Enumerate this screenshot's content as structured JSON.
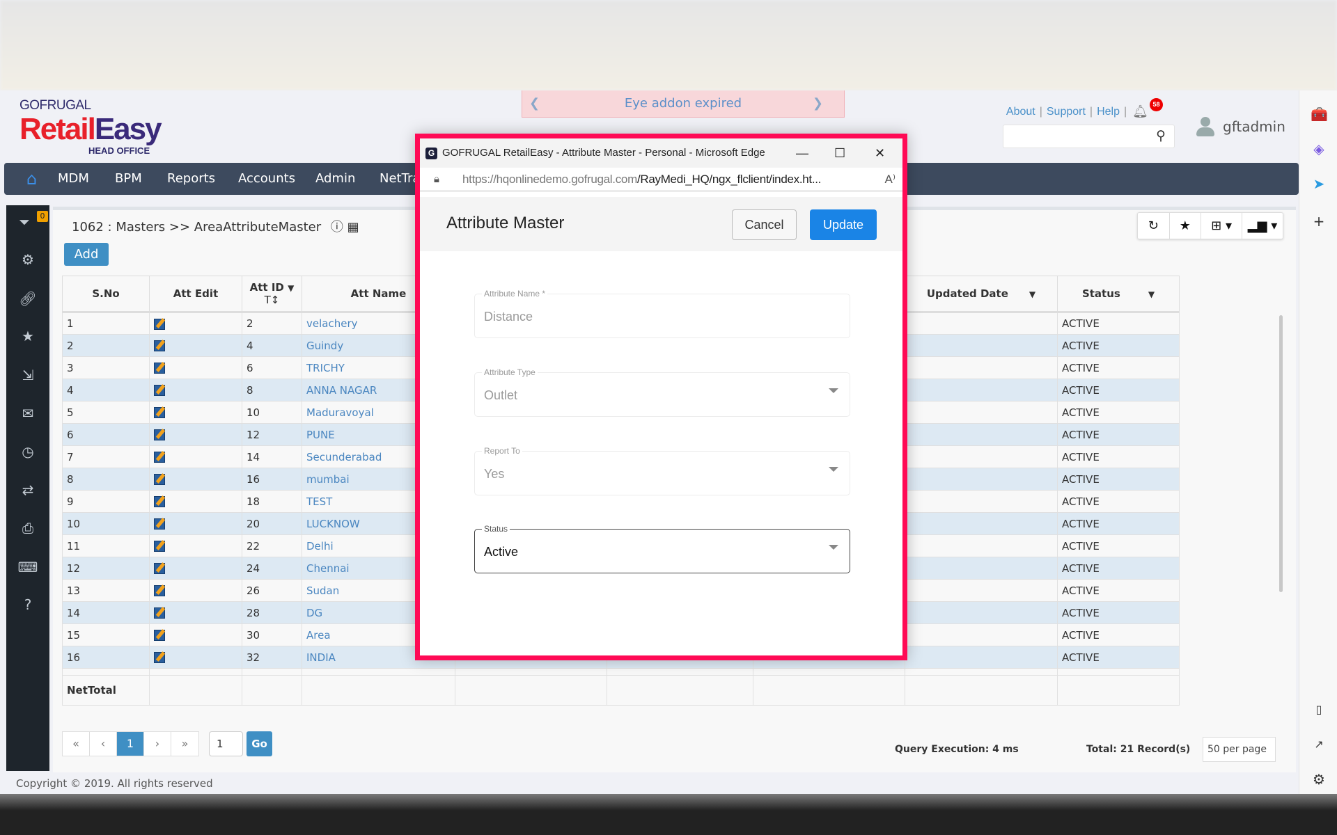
{
  "banner": {
    "text": "Eye addon expired"
  },
  "logo": {
    "brand": "GOFRUGAL",
    "product_a": "Retail",
    "product_b": "Easy",
    "sub": "HEAD OFFICE"
  },
  "header": {
    "links": [
      "About",
      "Support",
      "Help"
    ],
    "notification_count": "58",
    "username": "gftadmin",
    "search_placeholder": ""
  },
  "nav": {
    "items": [
      "MDM",
      "BPM",
      "Reports",
      "Accounts",
      "Admin",
      "NetTra"
    ]
  },
  "sidebar": {
    "filter_count": "0",
    "icons": [
      "filter-icon",
      "gear-icon",
      "link-icon",
      "star-icon",
      "export-icon",
      "mail-icon",
      "clock-icon",
      "transfer-icon",
      "print-icon",
      "keyboard-icon",
      "help-icon"
    ]
  },
  "page": {
    "breadcrumb": "1062 : Masters >> AreaAttributeMaster",
    "add_label": "Add"
  },
  "table": {
    "headers": {
      "sno": "S.No",
      "edit": "Att Edit",
      "id": "Att ID",
      "name": "Att Name",
      "updated": "Updated Date",
      "status": "Status"
    },
    "rows": [
      {
        "sno": "1",
        "id": "2",
        "name": "velachery",
        "status": "ACTIVE"
      },
      {
        "sno": "2",
        "id": "4",
        "name": "Guindy",
        "status": "ACTIVE"
      },
      {
        "sno": "3",
        "id": "6",
        "name": "TRICHY",
        "status": "ACTIVE"
      },
      {
        "sno": "4",
        "id": "8",
        "name": "ANNA NAGAR",
        "status": "ACTIVE"
      },
      {
        "sno": "5",
        "id": "10",
        "name": "Maduravoyal",
        "status": "ACTIVE"
      },
      {
        "sno": "6",
        "id": "12",
        "name": "PUNE",
        "status": "ACTIVE"
      },
      {
        "sno": "7",
        "id": "14",
        "name": "Secunderabad",
        "status": "ACTIVE"
      },
      {
        "sno": "8",
        "id": "16",
        "name": "mumbai",
        "status": "ACTIVE"
      },
      {
        "sno": "9",
        "id": "18",
        "name": "TEST",
        "status": "ACTIVE"
      },
      {
        "sno": "10",
        "id": "20",
        "name": "LUCKNOW",
        "status": "ACTIVE"
      },
      {
        "sno": "11",
        "id": "22",
        "name": "Delhi",
        "status": "ACTIVE"
      },
      {
        "sno": "12",
        "id": "24",
        "name": "Chennai",
        "status": "ACTIVE"
      },
      {
        "sno": "13",
        "id": "26",
        "name": "Sudan",
        "status": "ACTIVE"
      },
      {
        "sno": "14",
        "id": "28",
        "name": "DG",
        "status": "ACTIVE"
      },
      {
        "sno": "15",
        "id": "30",
        "name": "Area",
        "status": "ACTIVE"
      },
      {
        "sno": "16",
        "id": "32",
        "name": "INDIA",
        "status": "ACTIVE"
      }
    ],
    "total_label": "NetTotal"
  },
  "pagination": {
    "first": "«",
    "prev": "‹",
    "current": "1",
    "next": "›",
    "last": "»",
    "goto_value": "1",
    "go_label": "Go"
  },
  "footer": {
    "query_exec": "Query Execution: 4 ms",
    "total": "Total: 21 Record(s)",
    "per_page": "50 per page",
    "copyright": "Copyright © 2019. All rights reserved"
  },
  "popup": {
    "window_title": "GOFRUGAL RetailEasy - Attribute Master - Personal - Microsoft Edge",
    "url_host": "https://hqonlinedemo.gofrugal.com",
    "url_path": "/RayMedi_HQ/ngx_flclient/index.ht...",
    "title": "Attribute Master",
    "cancel_label": "Cancel",
    "update_label": "Update",
    "fields": [
      {
        "label": "Attribute Name *",
        "value": "Distance"
      },
      {
        "label": "Attribute Type",
        "value": "Outlet"
      },
      {
        "label": "Report To",
        "value": "Yes"
      },
      {
        "label": "Status",
        "value": "Active"
      }
    ]
  },
  "colors": {
    "accent": "#3f8fc4",
    "nav": "#3d4a5e",
    "highlight_border": "#ff0a55",
    "update_button": "#1a84e6"
  }
}
